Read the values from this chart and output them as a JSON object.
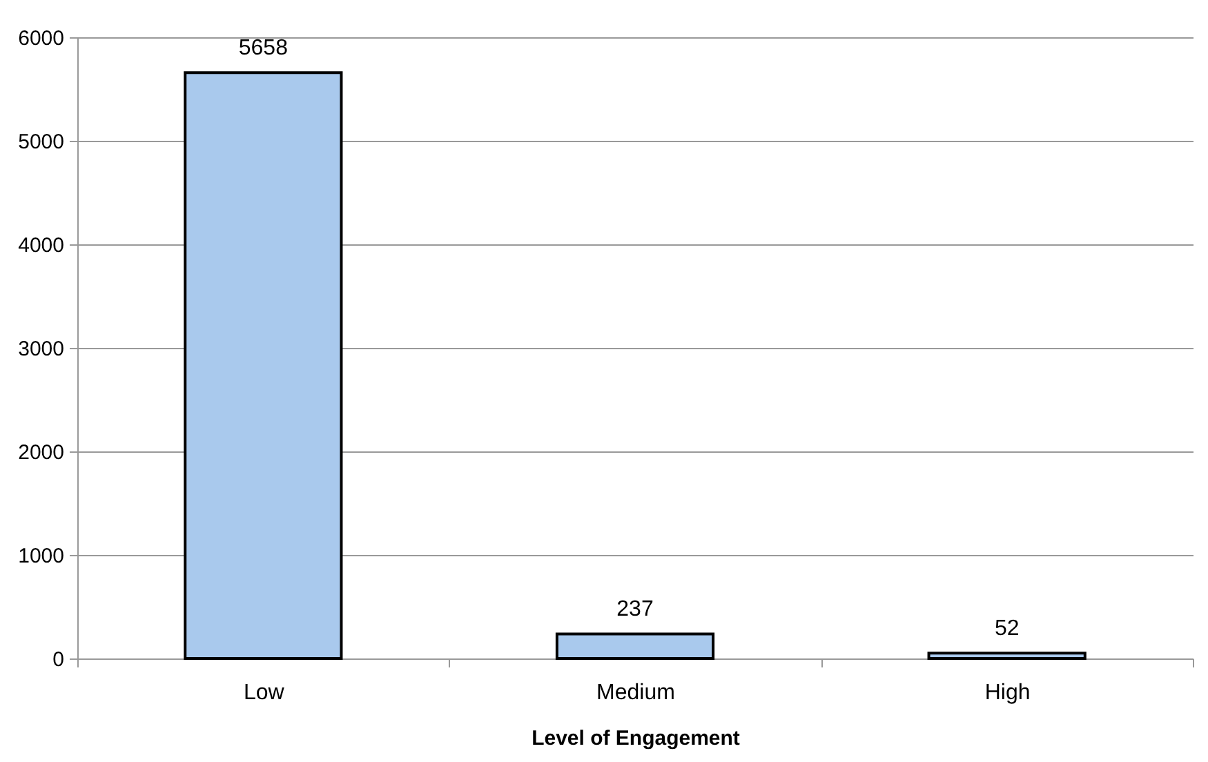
{
  "chart_data": {
    "type": "bar",
    "xlabel": "Level of Engagement",
    "categories": [
      "Low",
      "Medium",
      "High"
    ],
    "values": [
      5658,
      237,
      52
    ],
    "color": "#a9c9ed",
    "ylim": [
      0,
      6000
    ],
    "yticks": [
      0,
      1000,
      2000,
      3000,
      4000,
      5000,
      6000
    ],
    "grid": "y",
    "data_labels": true
  }
}
